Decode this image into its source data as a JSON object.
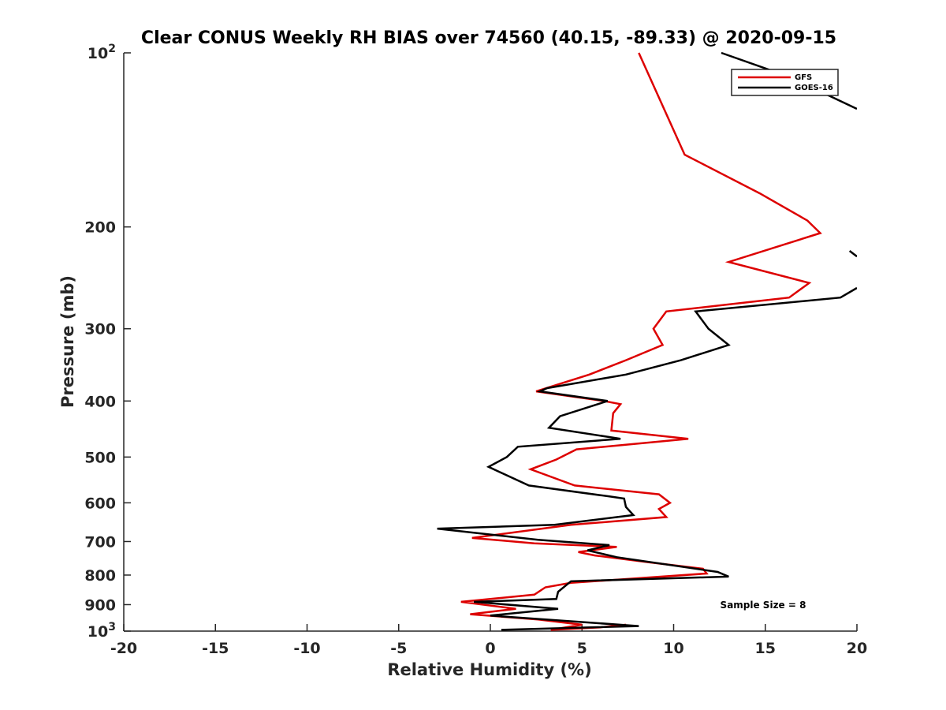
{
  "chart_data": {
    "type": "line",
    "title": "Clear CONUS Weekly RH BIAS over 74560 (40.15, -89.33) @ 2020-09-15",
    "xlabel": "Relative Humidity (%)",
    "ylabel": "Pressure (mb)",
    "xlim": [
      -20,
      20
    ],
    "ylim": [
      100,
      1000
    ],
    "y_scale": "log",
    "y_reversed": true,
    "grid": false,
    "legend_position": "top-right",
    "x_ticks": [
      "-20",
      "-15",
      "-10",
      "-5",
      "0",
      "5",
      "10",
      "15",
      "20"
    ],
    "x_tick_values": [
      -20,
      -15,
      -10,
      -5,
      0,
      5,
      10,
      15,
      20
    ],
    "y_ticks": [
      {
        "value": 100,
        "base": "10",
        "exp": "2"
      },
      {
        "value": 200,
        "label": "200"
      },
      {
        "value": 300,
        "label": "300"
      },
      {
        "value": 400,
        "label": "400"
      },
      {
        "value": 500,
        "label": "500"
      },
      {
        "value": 600,
        "label": "600"
      },
      {
        "value": 700,
        "label": "700"
      },
      {
        "value": 800,
        "label": "800"
      },
      {
        "value": 900,
        "label": "900"
      },
      {
        "value": 1000,
        "base": "10",
        "exp": "3"
      }
    ],
    "series": [
      {
        "name": "GFS",
        "color": "#dd0000",
        "points": [
          [
            8.1,
            100
          ],
          [
            10.6,
            150
          ],
          [
            14.7,
            175
          ],
          [
            17.3,
            195
          ],
          [
            18.0,
            205
          ],
          [
            13.0,
            230
          ],
          [
            17.4,
            250
          ],
          [
            16.3,
            265
          ],
          [
            9.6,
            280
          ],
          [
            8.9,
            300
          ],
          [
            9.4,
            320
          ],
          [
            7.4,
            340
          ],
          [
            5.4,
            360
          ],
          [
            2.5,
            385
          ],
          [
            6.2,
            400
          ],
          [
            7.1,
            405
          ],
          [
            6.7,
            420
          ],
          [
            6.6,
            450
          ],
          [
            10.8,
            465
          ],
          [
            4.7,
            485
          ],
          [
            3.6,
            505
          ],
          [
            2.2,
            525
          ],
          [
            4.6,
            560
          ],
          [
            9.2,
            580
          ],
          [
            9.8,
            600
          ],
          [
            9.2,
            615
          ],
          [
            9.6,
            635
          ],
          [
            4.4,
            655
          ],
          [
            -1.0,
            690
          ],
          [
            2.4,
            705
          ],
          [
            6.9,
            715
          ],
          [
            4.8,
            730
          ],
          [
            5.7,
            740
          ],
          [
            8.6,
            760
          ],
          [
            11.6,
            780
          ],
          [
            11.8,
            795
          ],
          [
            4.4,
            825
          ],
          [
            3.0,
            840
          ],
          [
            2.4,
            865
          ],
          [
            -1.6,
            890
          ],
          [
            1.4,
            915
          ],
          [
            -1.1,
            935
          ],
          [
            2.6,
            955
          ],
          [
            5.0,
            975
          ],
          [
            3.3,
            995
          ],
          [
            6.0,
            985
          ],
          [
            7.4,
            975
          ]
        ]
      },
      {
        "name": "GOES-16",
        "color": "#000000",
        "points": [
          [
            12.6,
            100
          ],
          [
            16.3,
            110
          ],
          [
            20.0,
            125
          ]
        ],
        "segments": [
          [
            [
              19.6,
              220
            ],
            [
              20.0,
              225
            ]
          ],
          [
            [
              20.0,
              255
            ],
            [
              19.1,
              265
            ],
            [
              11.2,
              280
            ],
            [
              11.9,
              300
            ],
            [
              13.0,
              320
            ],
            [
              10.4,
              340
            ],
            [
              7.4,
              360
            ],
            [
              3.1,
              380
            ],
            [
              2.7,
              385
            ],
            [
              6.4,
              400
            ],
            [
              3.8,
              425
            ],
            [
              3.2,
              445
            ],
            [
              7.1,
              465
            ],
            [
              1.5,
              480
            ],
            [
              0.9,
              500
            ],
            [
              -0.1,
              520
            ],
            [
              2.1,
              560
            ],
            [
              6.5,
              585
            ],
            [
              7.3,
              590
            ],
            [
              7.4,
              610
            ],
            [
              7.8,
              630
            ],
            [
              3.5,
              655
            ],
            [
              -2.9,
              665
            ],
            [
              2.6,
              695
            ],
            [
              6.5,
              710
            ],
            [
              5.3,
              725
            ],
            [
              6.9,
              745
            ],
            [
              12.4,
              790
            ],
            [
              13.0,
              805
            ],
            [
              4.4,
              820
            ],
            [
              3.7,
              855
            ],
            [
              3.6,
              880
            ],
            [
              -0.9,
              890
            ],
            [
              3.7,
              915
            ],
            [
              0.0,
              940
            ],
            [
              8.1,
              980
            ],
            [
              0.6,
              995
            ]
          ]
        ]
      }
    ],
    "annotations": [
      "Sample Size = 8"
    ]
  }
}
